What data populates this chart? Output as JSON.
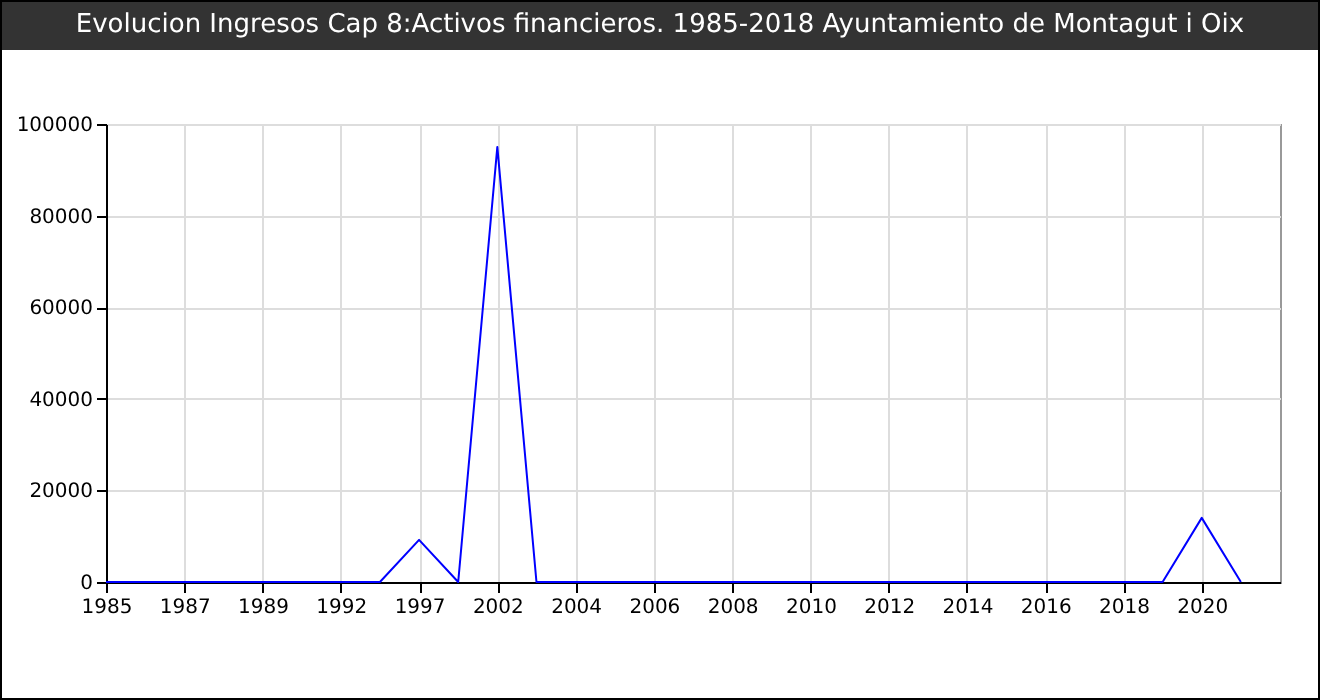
{
  "chart_data": {
    "type": "line",
    "title": "Evolucion Ingresos Cap 8:Activos financieros. 1985-2018 Ayuntamiento de Montagut i Oix",
    "categories": [
      "1985",
      null,
      "1987",
      null,
      "1989",
      null,
      "1992",
      null,
      "1997",
      null,
      "2002",
      null,
      "2004",
      null,
      "2006",
      null,
      "2008",
      null,
      "2010",
      null,
      "2012",
      null,
      "2014",
      null,
      "2016",
      null,
      "2018",
      null,
      "2020",
      null
    ],
    "series": [
      {
        "color": "#0000ff",
        "values": [
          0,
          0,
          0,
          0,
          0,
          0,
          0,
          0,
          9200,
          0,
          95000,
          0,
          0,
          0,
          0,
          0,
          0,
          0,
          0,
          0,
          0,
          0,
          0,
          0,
          0,
          0,
          0,
          0,
          14000,
          0
        ]
      }
    ],
    "ylim": [
      0,
      100000
    ],
    "yticks": [
      0,
      20000,
      40000,
      60000,
      80000,
      100000
    ],
    "grid": true,
    "marker": "none"
  }
}
